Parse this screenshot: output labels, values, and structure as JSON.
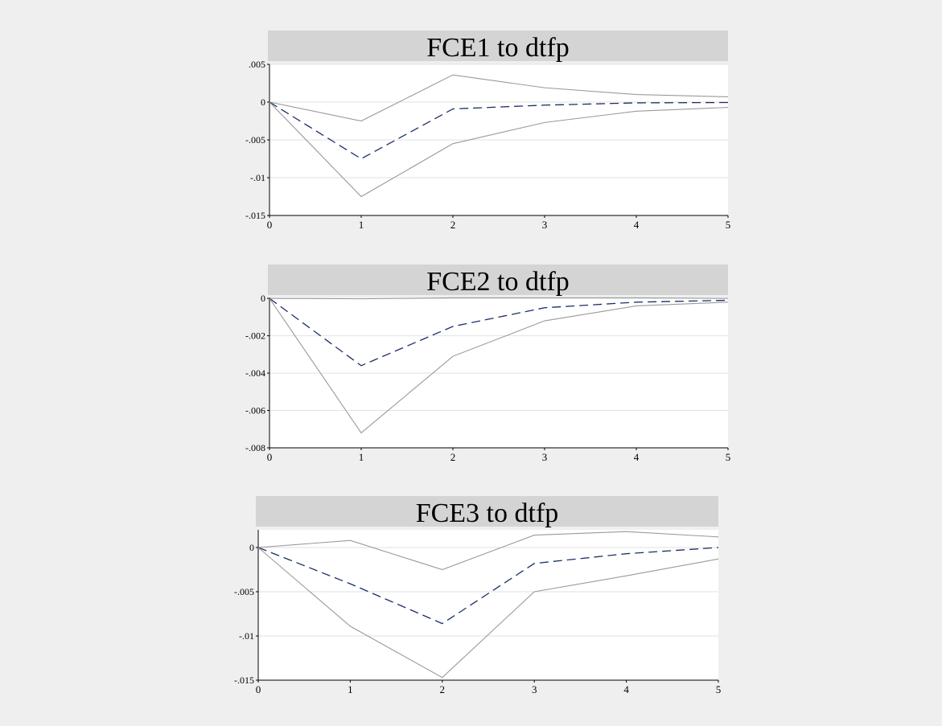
{
  "colors": {
    "background": "#efefef",
    "panel": "#ffffff",
    "title_bar": "#d4d4d4",
    "band_line": "#9a9a9a",
    "irf_line": "#1c2e6b",
    "grid": "#e2e2e2",
    "axis": "#000000"
  },
  "chart_data": [
    {
      "type": "line",
      "title": "FCE1 to dtfp",
      "x": [
        0,
        1,
        2,
        3,
        4,
        5
      ],
      "xticks": [
        "0",
        "1",
        "2",
        "3",
        "4",
        "5"
      ],
      "ylim": [
        -0.015,
        0.005
      ],
      "yticks": [
        0.005,
        0,
        -0.005,
        -0.01,
        -0.015
      ],
      "ytick_labels": [
        ".005",
        "0",
        "-.005",
        "-.01",
        "-.015"
      ],
      "grid": true,
      "series": [
        {
          "role": "upper-band",
          "values": [
            0,
            -0.0025,
            0.0036,
            0.0019,
            0.001,
            0.0007
          ]
        },
        {
          "role": "irf",
          "values": [
            0,
            -0.0075,
            -0.0009,
            -0.0004,
            -0.0001,
            -5e-05
          ]
        },
        {
          "role": "lower-band",
          "values": [
            0,
            -0.0125,
            -0.0055,
            -0.0027,
            -0.0012,
            -0.0007
          ]
        }
      ]
    },
    {
      "type": "line",
      "title": "FCE2 to dtfp",
      "x": [
        0,
        1,
        2,
        3,
        4,
        5
      ],
      "xticks": [
        "0",
        "1",
        "2",
        "3",
        "4",
        "5"
      ],
      "ylim": [
        -0.008,
        5e-05
      ],
      "yticks": [
        0,
        -0.002,
        -0.004,
        -0.006,
        -0.008
      ],
      "ytick_labels": [
        "0",
        "-.002",
        "-.004",
        "-.006",
        "-.008"
      ],
      "grid": true,
      "series": [
        {
          "role": "upper-band",
          "values": [
            0,
            -2e-05,
            3e-05,
            3e-05,
            3e-05,
            0.0
          ]
        },
        {
          "role": "irf",
          "values": [
            0,
            -0.0036,
            -0.0015,
            -0.0005,
            -0.0002,
            -0.0001
          ]
        },
        {
          "role": "lower-band",
          "values": [
            0,
            -0.0072,
            -0.0031,
            -0.0012,
            -0.0004,
            -0.0002
          ]
        }
      ]
    },
    {
      "type": "line",
      "title": "FCE3 to dtfp",
      "x": [
        0,
        1,
        2,
        3,
        4,
        5
      ],
      "xticks": [
        "0",
        "1",
        "2",
        "3",
        "4",
        "5"
      ],
      "ylim": [
        -0.015,
        0.002
      ],
      "yticks": [
        0,
        -0.005,
        -0.01,
        -0.015
      ],
      "ytick_labels": [
        "0",
        "-.005",
        "-.01",
        "-.015"
      ],
      "grid": true,
      "series": [
        {
          "role": "upper-band",
          "values": [
            0,
            0.0008,
            -0.0025,
            0.0014,
            0.0018,
            0.0012
          ]
        },
        {
          "role": "irf",
          "values": [
            0,
            -0.0041,
            -0.0086,
            -0.0018,
            -0.0007,
            0.0
          ]
        },
        {
          "role": "lower-band",
          "values": [
            0,
            -0.0089,
            -0.0147,
            -0.005,
            -0.0032,
            -0.0013
          ]
        }
      ]
    }
  ]
}
